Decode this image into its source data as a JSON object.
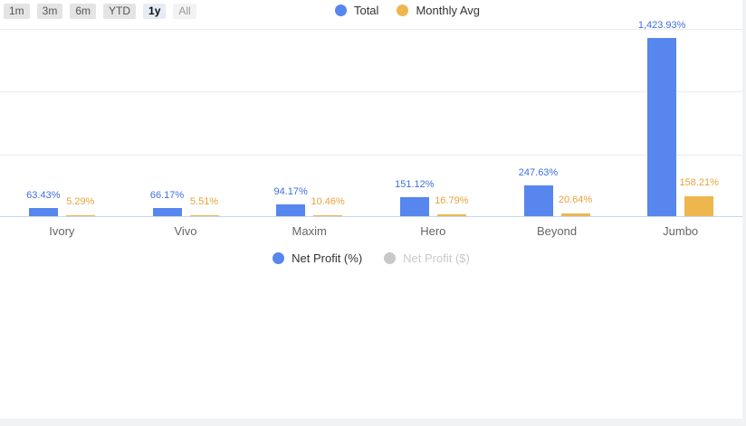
{
  "range_selector": {
    "buttons": [
      {
        "label": "1m",
        "selected": false,
        "muted": false
      },
      {
        "label": "3m",
        "selected": false,
        "muted": false
      },
      {
        "label": "6m",
        "selected": false,
        "muted": false
      },
      {
        "label": "YTD",
        "selected": false,
        "muted": false
      },
      {
        "label": "1y",
        "selected": true,
        "muted": false
      },
      {
        "label": "All",
        "selected": false,
        "muted": true
      }
    ]
  },
  "top_legend": {
    "items": [
      {
        "label": "Total",
        "color": "#5686ee",
        "active": true
      },
      {
        "label": "Monthly Avg",
        "color": "#edb74d",
        "active": true
      }
    ]
  },
  "bottom_legend": {
    "items": [
      {
        "label": "Net Profit (%)",
        "color": "#5686ee",
        "active": true
      },
      {
        "label": "Net Profit ($)",
        "color": "#c8c8c8",
        "active": false
      }
    ]
  },
  "chart_data": {
    "type": "bar",
    "title": "",
    "xlabel": "",
    "ylabel": "",
    "categories": [
      "Ivory",
      "Vivo",
      "Maxim",
      "Hero",
      "Beyond",
      "Jumbo"
    ],
    "series": [
      {
        "name": "Total",
        "color": "#5686ee",
        "label_color": "#3e6fdf",
        "values": [
          63.43,
          66.17,
          94.17,
          151.12,
          247.63,
          1423.93
        ],
        "data_labels": [
          "63.43%",
          "66.17%",
          "94.17%",
          "151.12%",
          "247.63%",
          "1,423.93%"
        ]
      },
      {
        "name": "Monthly Avg",
        "color": "#edb74d",
        "label_color": "#e9a23c",
        "values": [
          5.29,
          5.51,
          10.46,
          16.79,
          20.64,
          158.21
        ],
        "data_labels": [
          "5.29%",
          "5.51%",
          "10.46%",
          "16.79%",
          "20.64%",
          "158.21%"
        ]
      }
    ],
    "ylim": [
      0,
      1500
    ],
    "gridline_values": [
      500,
      1000,
      1500
    ],
    "grid": "horizontal",
    "y_tick_labels_visible": false,
    "legend_position": "top",
    "axis_line_color": "#ccd6eb",
    "gridline_color": "#ececec"
  }
}
